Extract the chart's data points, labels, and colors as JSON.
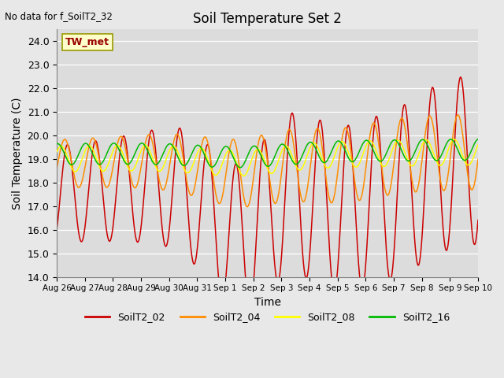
{
  "title": "Soil Temperature Set 2",
  "no_data_label": "No data for f_SoilT2_32",
  "tw_met_label": "TW_met",
  "xlabel": "Time",
  "ylabel": "Soil Temperature (C)",
  "ylim": [
    14.0,
    24.5
  ],
  "yticks": [
    14.0,
    15.0,
    16.0,
    17.0,
    18.0,
    19.0,
    20.0,
    21.0,
    22.0,
    23.0,
    24.0
  ],
  "bg_color": "#dcdcdc",
  "fig_color": "#e8e8e8",
  "series_colors": {
    "SoilT2_02": "#cc0000",
    "SoilT2_04": "#ff8c00",
    "SoilT2_08": "#ffff00",
    "SoilT2_16": "#00bb00"
  },
  "day_labels": [
    "Aug 26",
    "Aug 27",
    "Aug 28",
    "Aug 29",
    "Aug 30",
    "Aug 31",
    "Sep 1",
    "Sep 2",
    "Sep 3",
    "Sep 4",
    "Sep 5",
    "Sep 6",
    "Sep 7",
    "Sep 8",
    "Sep 9",
    "Sep 10"
  ],
  "n_days": 15,
  "figsize": [
    6.4,
    4.8
  ],
  "dpi": 100
}
